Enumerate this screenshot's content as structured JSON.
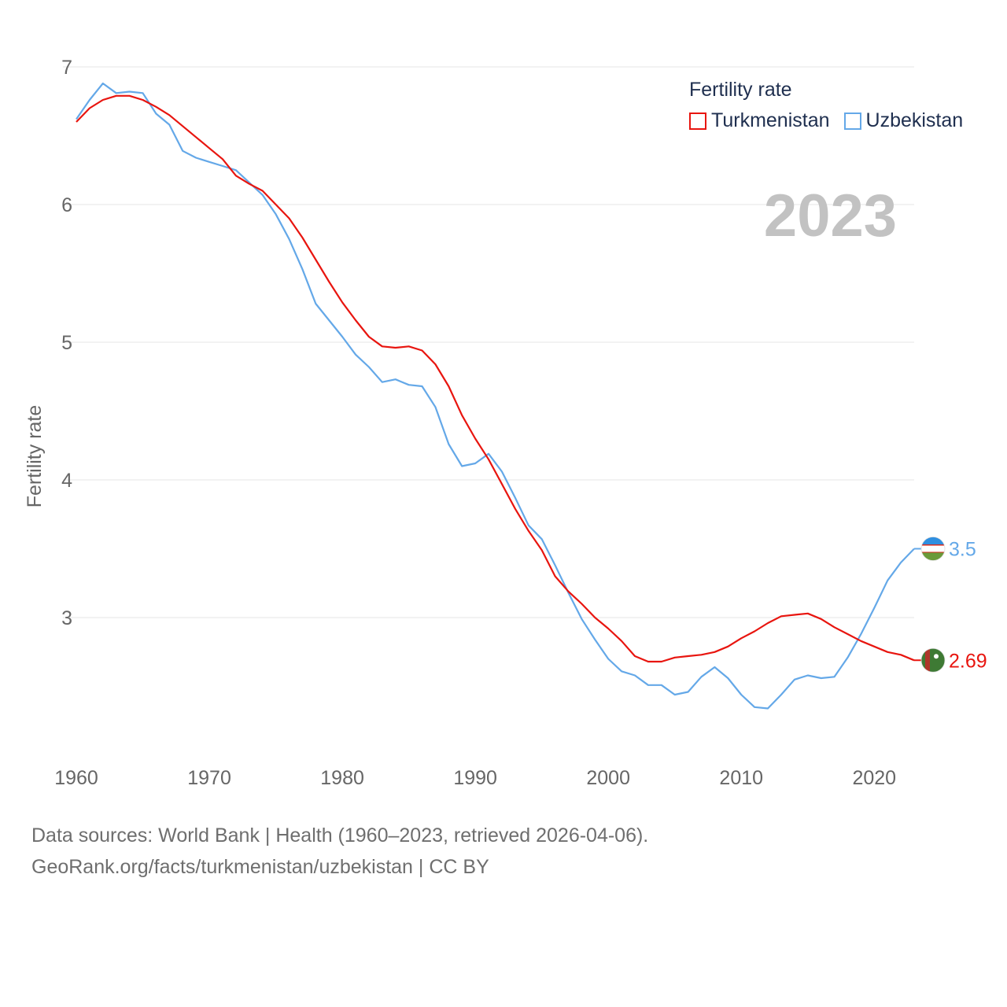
{
  "legend": {
    "title": "Fertility rate",
    "items": [
      {
        "label": "Turkmenistan",
        "color": "#e8150f"
      },
      {
        "label": "Uzbekistan",
        "color": "#64a8e8"
      }
    ]
  },
  "source": {
    "line1": "Data sources: World Bank | Health (1960–2023, retrieved 2026-04-06).",
    "line2": "GeoRank.org/facts/turkmenistan/uzbekistan | CC BY"
  },
  "chart_data": {
    "type": "line",
    "title": "Fertility rate",
    "year_label": "2023",
    "xlabel": "",
    "ylabel": "Fertility rate",
    "xlim": [
      1960,
      2023
    ],
    "ylim": [
      2,
      7
    ],
    "xticks": [
      1960,
      1970,
      1980,
      1990,
      2000,
      2010,
      2020
    ],
    "yticks": [
      3,
      4,
      5,
      6,
      7
    ],
    "x": [
      1960,
      1961,
      1962,
      1963,
      1964,
      1965,
      1966,
      1967,
      1968,
      1969,
      1970,
      1971,
      1972,
      1973,
      1974,
      1975,
      1976,
      1977,
      1978,
      1979,
      1980,
      1981,
      1982,
      1983,
      1984,
      1985,
      1986,
      1987,
      1988,
      1989,
      1990,
      1991,
      1992,
      1993,
      1994,
      1995,
      1996,
      1997,
      1998,
      1999,
      2000,
      2001,
      2002,
      2003,
      2004,
      2005,
      2006,
      2007,
      2008,
      2009,
      2010,
      2011,
      2012,
      2013,
      2014,
      2015,
      2016,
      2017,
      2018,
      2019,
      2020,
      2021,
      2022,
      2023
    ],
    "series": [
      {
        "name": "Turkmenistan",
        "color": "#e8150f",
        "end_label": "2.69",
        "flag_icon": "turkmenistan-flag-icon",
        "values": [
          6.6,
          6.7,
          6.76,
          6.79,
          6.79,
          6.76,
          6.71,
          6.65,
          6.57,
          6.49,
          6.41,
          6.33,
          6.21,
          6.15,
          6.1,
          6.0,
          5.9,
          5.76,
          5.6,
          5.44,
          5.29,
          5.16,
          5.04,
          4.97,
          4.96,
          4.97,
          4.94,
          4.84,
          4.68,
          4.47,
          4.3,
          4.15,
          3.97,
          3.79,
          3.63,
          3.49,
          3.3,
          3.19,
          3.1,
          3.0,
          2.92,
          2.83,
          2.72,
          2.68,
          2.68,
          2.71,
          2.72,
          2.73,
          2.75,
          2.79,
          2.85,
          2.9,
          2.96,
          3.01,
          3.02,
          3.03,
          2.99,
          2.93,
          2.88,
          2.83,
          2.79,
          2.75,
          2.73,
          2.69
        ]
      },
      {
        "name": "Uzbekistan",
        "color": "#64a8e8",
        "end_label": "3.5",
        "flag_icon": "uzbekistan-flag-icon",
        "values": [
          6.62,
          6.76,
          6.88,
          6.81,
          6.82,
          6.81,
          6.66,
          6.58,
          6.39,
          6.34,
          6.31,
          6.28,
          6.25,
          6.16,
          6.07,
          5.93,
          5.75,
          5.53,
          5.28,
          5.16,
          5.04,
          4.91,
          4.82,
          4.71,
          4.73,
          4.69,
          4.68,
          4.53,
          4.26,
          4.1,
          4.12,
          4.19,
          4.06,
          3.87,
          3.67,
          3.57,
          3.38,
          3.18,
          2.99,
          2.84,
          2.7,
          2.61,
          2.58,
          2.51,
          2.51,
          2.44,
          2.46,
          2.57,
          2.64,
          2.56,
          2.44,
          2.35,
          2.34,
          2.44,
          2.55,
          2.58,
          2.56,
          2.57,
          2.71,
          2.88,
          3.07,
          3.27,
          3.4,
          3.5
        ]
      }
    ]
  }
}
